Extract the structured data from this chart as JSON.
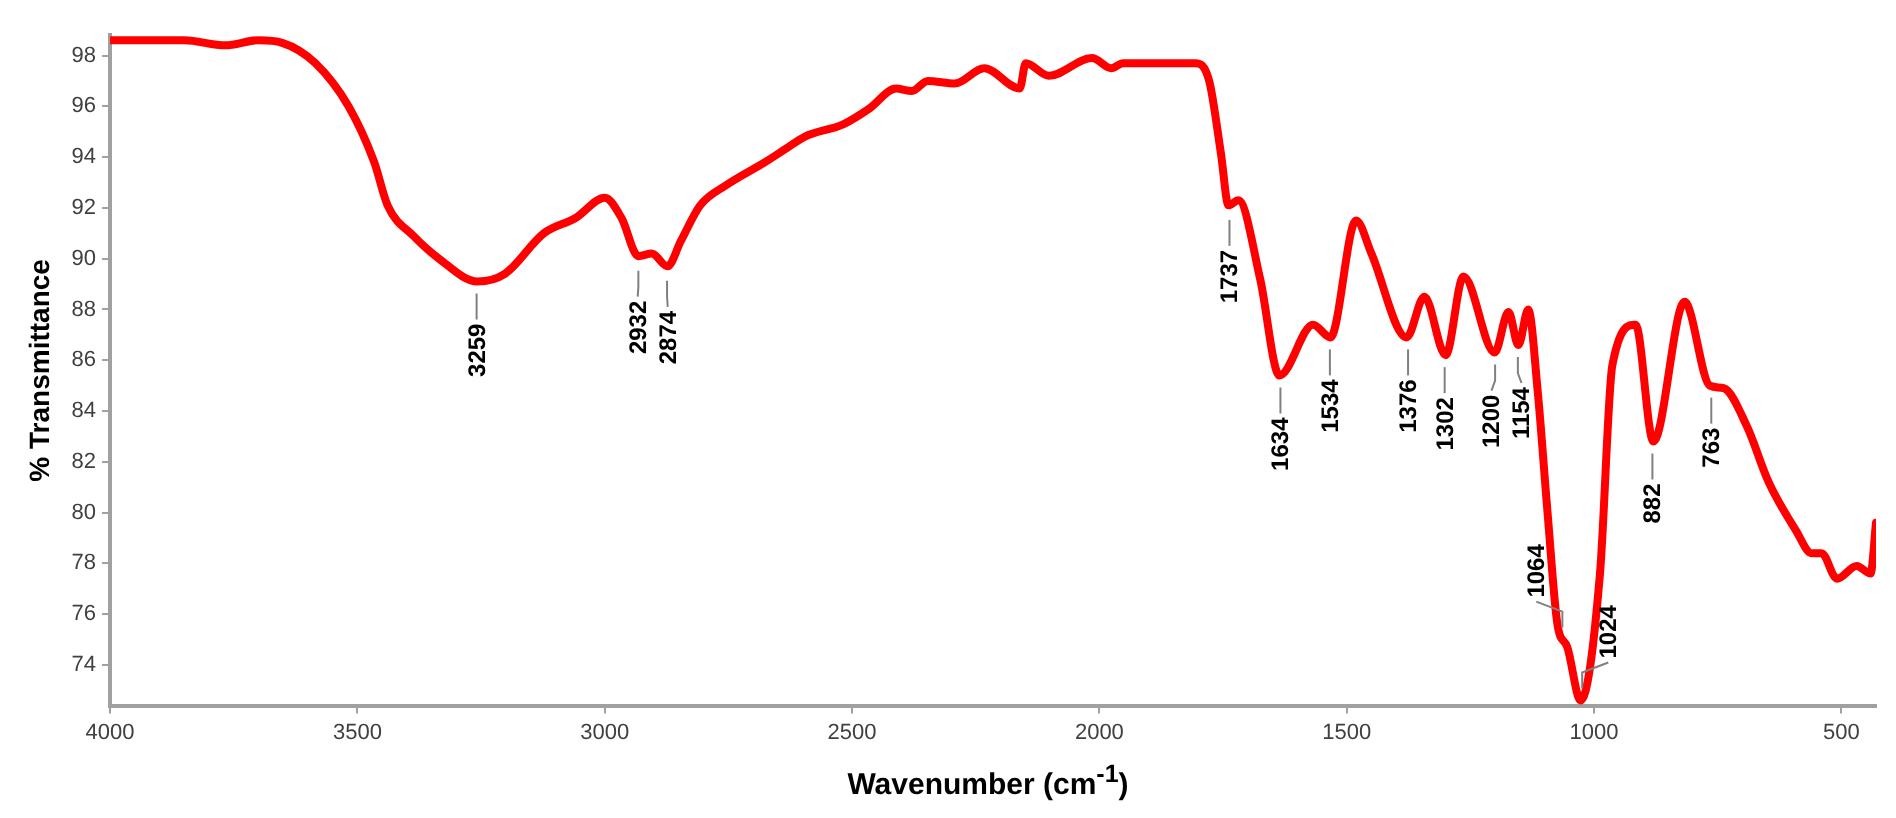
{
  "chart_data": {
    "type": "line",
    "xlabel": "Wavenumber (cm$^{-1}$)",
    "ylabel": "% Transmittance",
    "xlim": [
      4000,
      430
    ],
    "ylim": [
      72.4,
      98.8
    ],
    "xticks": [
      4000,
      3500,
      3000,
      2500,
      2000,
      1500,
      1000,
      500
    ],
    "yticks": [
      74,
      76,
      78,
      80,
      82,
      84,
      86,
      88,
      90,
      92,
      94,
      96,
      98
    ],
    "grid": false,
    "legend": false,
    "marker": "none",
    "line_style": "solid",
    "series": [
      {
        "color": "#ff0000",
        "x": [
          4000,
          3850,
          3767,
          3700,
          3652,
          3585,
          3518,
          3466,
          3439,
          3387,
          3335,
          3257,
          3202,
          3123,
          3059,
          3000,
          2966,
          2932,
          2905,
          2873,
          2846,
          2807,
          2754,
          2676,
          2636,
          2596,
          2517,
          2466,
          2411,
          2379,
          2347,
          2292,
          2233,
          2161,
          2149,
          2102,
          2015,
          1976,
          1952,
          1806,
          1778,
          1754,
          1739,
          1719,
          1675,
          1636,
          1568,
          1533,
          1481,
          1450,
          1379,
          1343,
          1300,
          1264,
          1201,
          1173,
          1153,
          1133,
          1114,
          1094,
          1074,
          1054,
          1027,
          988,
          963,
          916,
          880,
          817,
          766,
          738,
          691,
          647,
          592,
          560,
          540,
          509,
          469,
          441,
          430
        ],
        "values": [
          98.6,
          98.6,
          98.4,
          98.6,
          98.5,
          97.7,
          96.0,
          93.8,
          92.1,
          90.9,
          90.0,
          89.1,
          89.4,
          91.0,
          91.6,
          92.4,
          91.6,
          90.1,
          90.2,
          89.7,
          90.7,
          92.1,
          92.9,
          93.8,
          94.3,
          94.8,
          95.3,
          95.9,
          96.7,
          96.6,
          97.0,
          96.9,
          97.5,
          96.7,
          97.7,
          97.2,
          97.9,
          97.5,
          97.7,
          97.7,
          97.0,
          94.1,
          92.1,
          92.3,
          89.2,
          85.4,
          87.4,
          86.9,
          91.5,
          90.2,
          86.9,
          88.5,
          86.2,
          89.3,
          86.3,
          87.9,
          86.6,
          88.0,
          84.8,
          80.0,
          75.6,
          74.7,
          72.6,
          77.6,
          85.8,
          87.4,
          82.8,
          88.3,
          85.0,
          84.9,
          83.4,
          81.2,
          79.3,
          78.4,
          78.4,
          77.4,
          77.9,
          77.6,
          79.6
        ]
      }
    ],
    "annotations": [
      {
        "text": "3259",
        "x": 3259,
        "y": 89.1
      },
      {
        "text": "2932",
        "x": 2932,
        "y": 90.0
      },
      {
        "text": "2874",
        "x": 2874,
        "y": 89.6
      },
      {
        "text": "1737",
        "x": 1737,
        "y": 92.0
      },
      {
        "text": "1634",
        "x": 1634,
        "y": 85.4
      },
      {
        "text": "1534",
        "x": 1534,
        "y": 86.9
      },
      {
        "text": "1376",
        "x": 1376,
        "y": 86.9
      },
      {
        "text": "1302",
        "x": 1302,
        "y": 86.2
      },
      {
        "text": "1200",
        "x": 1200,
        "y": 86.3
      },
      {
        "text": "1154",
        "x": 1154,
        "y": 86.6
      },
      {
        "text": "1064",
        "x": 1064,
        "y": 75.0
      },
      {
        "text": "1024",
        "x": 1024,
        "y": 72.6
      },
      {
        "text": "882",
        "x": 882,
        "y": 82.8
      },
      {
        "text": "763",
        "x": 763,
        "y": 85.0
      }
    ]
  }
}
